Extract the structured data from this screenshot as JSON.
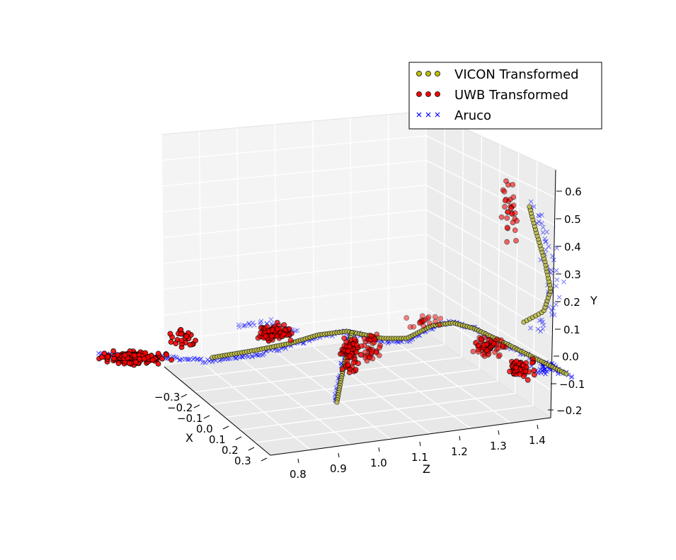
{
  "chart_data": {
    "type": "scatter",
    "projection": "3d",
    "title": "",
    "xlabel": "X",
    "ylabel": "Y",
    "zlabel": "Z",
    "xlim": [
      -0.4,
      0.35
    ],
    "ylim": [
      -0.2,
      0.65
    ],
    "zlim": [
      0.78,
      1.45
    ],
    "x_ticks": [
      "−0.3",
      "−0.2",
      "−0.1",
      "0.0",
      "0.1",
      "0.2",
      "0.3"
    ],
    "y_ticks": [
      "−0.2",
      "−0.1",
      "0.0",
      "0.1",
      "0.2",
      "0.3",
      "0.4",
      "0.5",
      "0.6"
    ],
    "z_ticks": [
      "0.8",
      "0.9",
      "1.0",
      "1.1",
      "1.2",
      "1.3",
      "1.4"
    ],
    "grid": true,
    "legend_position": "top-right",
    "series": [
      {
        "name": "VICON Transformed",
        "marker": "circle",
        "color": "#bfbf00",
        "edge": "#000000",
        "trajectory": [
          {
            "x": -0.4,
            "y": -0.02,
            "z": 0.78
          },
          {
            "x": -0.3,
            "y": -0.02,
            "z": 0.8
          },
          {
            "x": -0.15,
            "y": 0.0,
            "z": 0.86
          },
          {
            "x": -0.05,
            "y": 0.01,
            "z": 0.89
          },
          {
            "x": 0.3,
            "y": -0.13,
            "z": 0.93
          },
          {
            "x": -0.05,
            "y": 0.03,
            "z": 1.0
          },
          {
            "x": -0.25,
            "y": 0.05,
            "z": 1.12
          },
          {
            "x": -0.3,
            "y": 0.08,
            "z": 1.2
          },
          {
            "x": -0.2,
            "y": 0.05,
            "z": 1.25
          },
          {
            "x": 0.1,
            "y": -0.05,
            "z": 1.38
          },
          {
            "x": -0.1,
            "y": 0.1,
            "z": 1.42
          },
          {
            "x": -0.2,
            "y": 0.45,
            "z": 1.44
          },
          {
            "x": -0.3,
            "y": 0.58,
            "z": 1.44
          }
        ]
      },
      {
        "name": "UWB Transformed",
        "marker": "circle",
        "color": "#ff0000",
        "edge": "#000000",
        "clusters": [
          {
            "x": -0.35,
            "y": -0.05,
            "z": 0.8
          },
          {
            "x": -0.3,
            "y": 0.05,
            "z": 0.92
          },
          {
            "x": 0.2,
            "y": -0.1,
            "z": 0.95
          },
          {
            "x": 0.0,
            "y": 0.0,
            "z": 1.0
          },
          {
            "x": -0.25,
            "y": 0.05,
            "z": 1.2
          },
          {
            "x": 0.1,
            "y": -0.05,
            "z": 1.35
          },
          {
            "x": -0.2,
            "y": 0.55,
            "z": 1.44
          }
        ]
      },
      {
        "name": "Aruco",
        "marker": "x",
        "color": "#0000ff",
        "trajectory_note": "follows the same path with additional scatter"
      }
    ]
  }
}
